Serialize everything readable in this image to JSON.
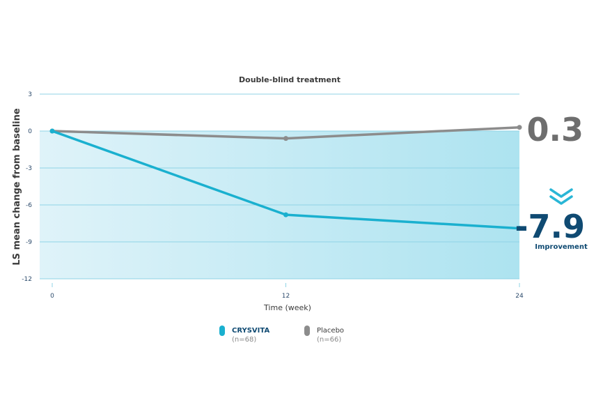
{
  "chart_data": {
    "type": "line",
    "title": "Double-blind treatment",
    "xlabel": "Time (week)",
    "ylabel": "LS mean change from baseline",
    "x": [
      0,
      12,
      24
    ],
    "xlim": [
      0,
      24
    ],
    "ylim": [
      -12,
      3
    ],
    "yticks": [
      3,
      0,
      -3,
      -6,
      -9,
      -12
    ],
    "xticks": [
      0,
      12,
      24
    ],
    "grid": true,
    "legend_position": "bottom",
    "series": [
      {
        "name": "CRYSVITA",
        "n_label": "(n=68)",
        "values": [
          0,
          -6.8,
          -7.9
        ],
        "color": "#1ab0cf"
      },
      {
        "name": "Placebo",
        "n_label": "(n=66)",
        "values": [
          0,
          -0.6,
          0.3
        ],
        "color": "#8c8c8c"
      }
    ],
    "annotations": {
      "placebo_value": "0.3",
      "crysvita_value": "-7.9",
      "crysvita_note": "Improvement"
    }
  }
}
